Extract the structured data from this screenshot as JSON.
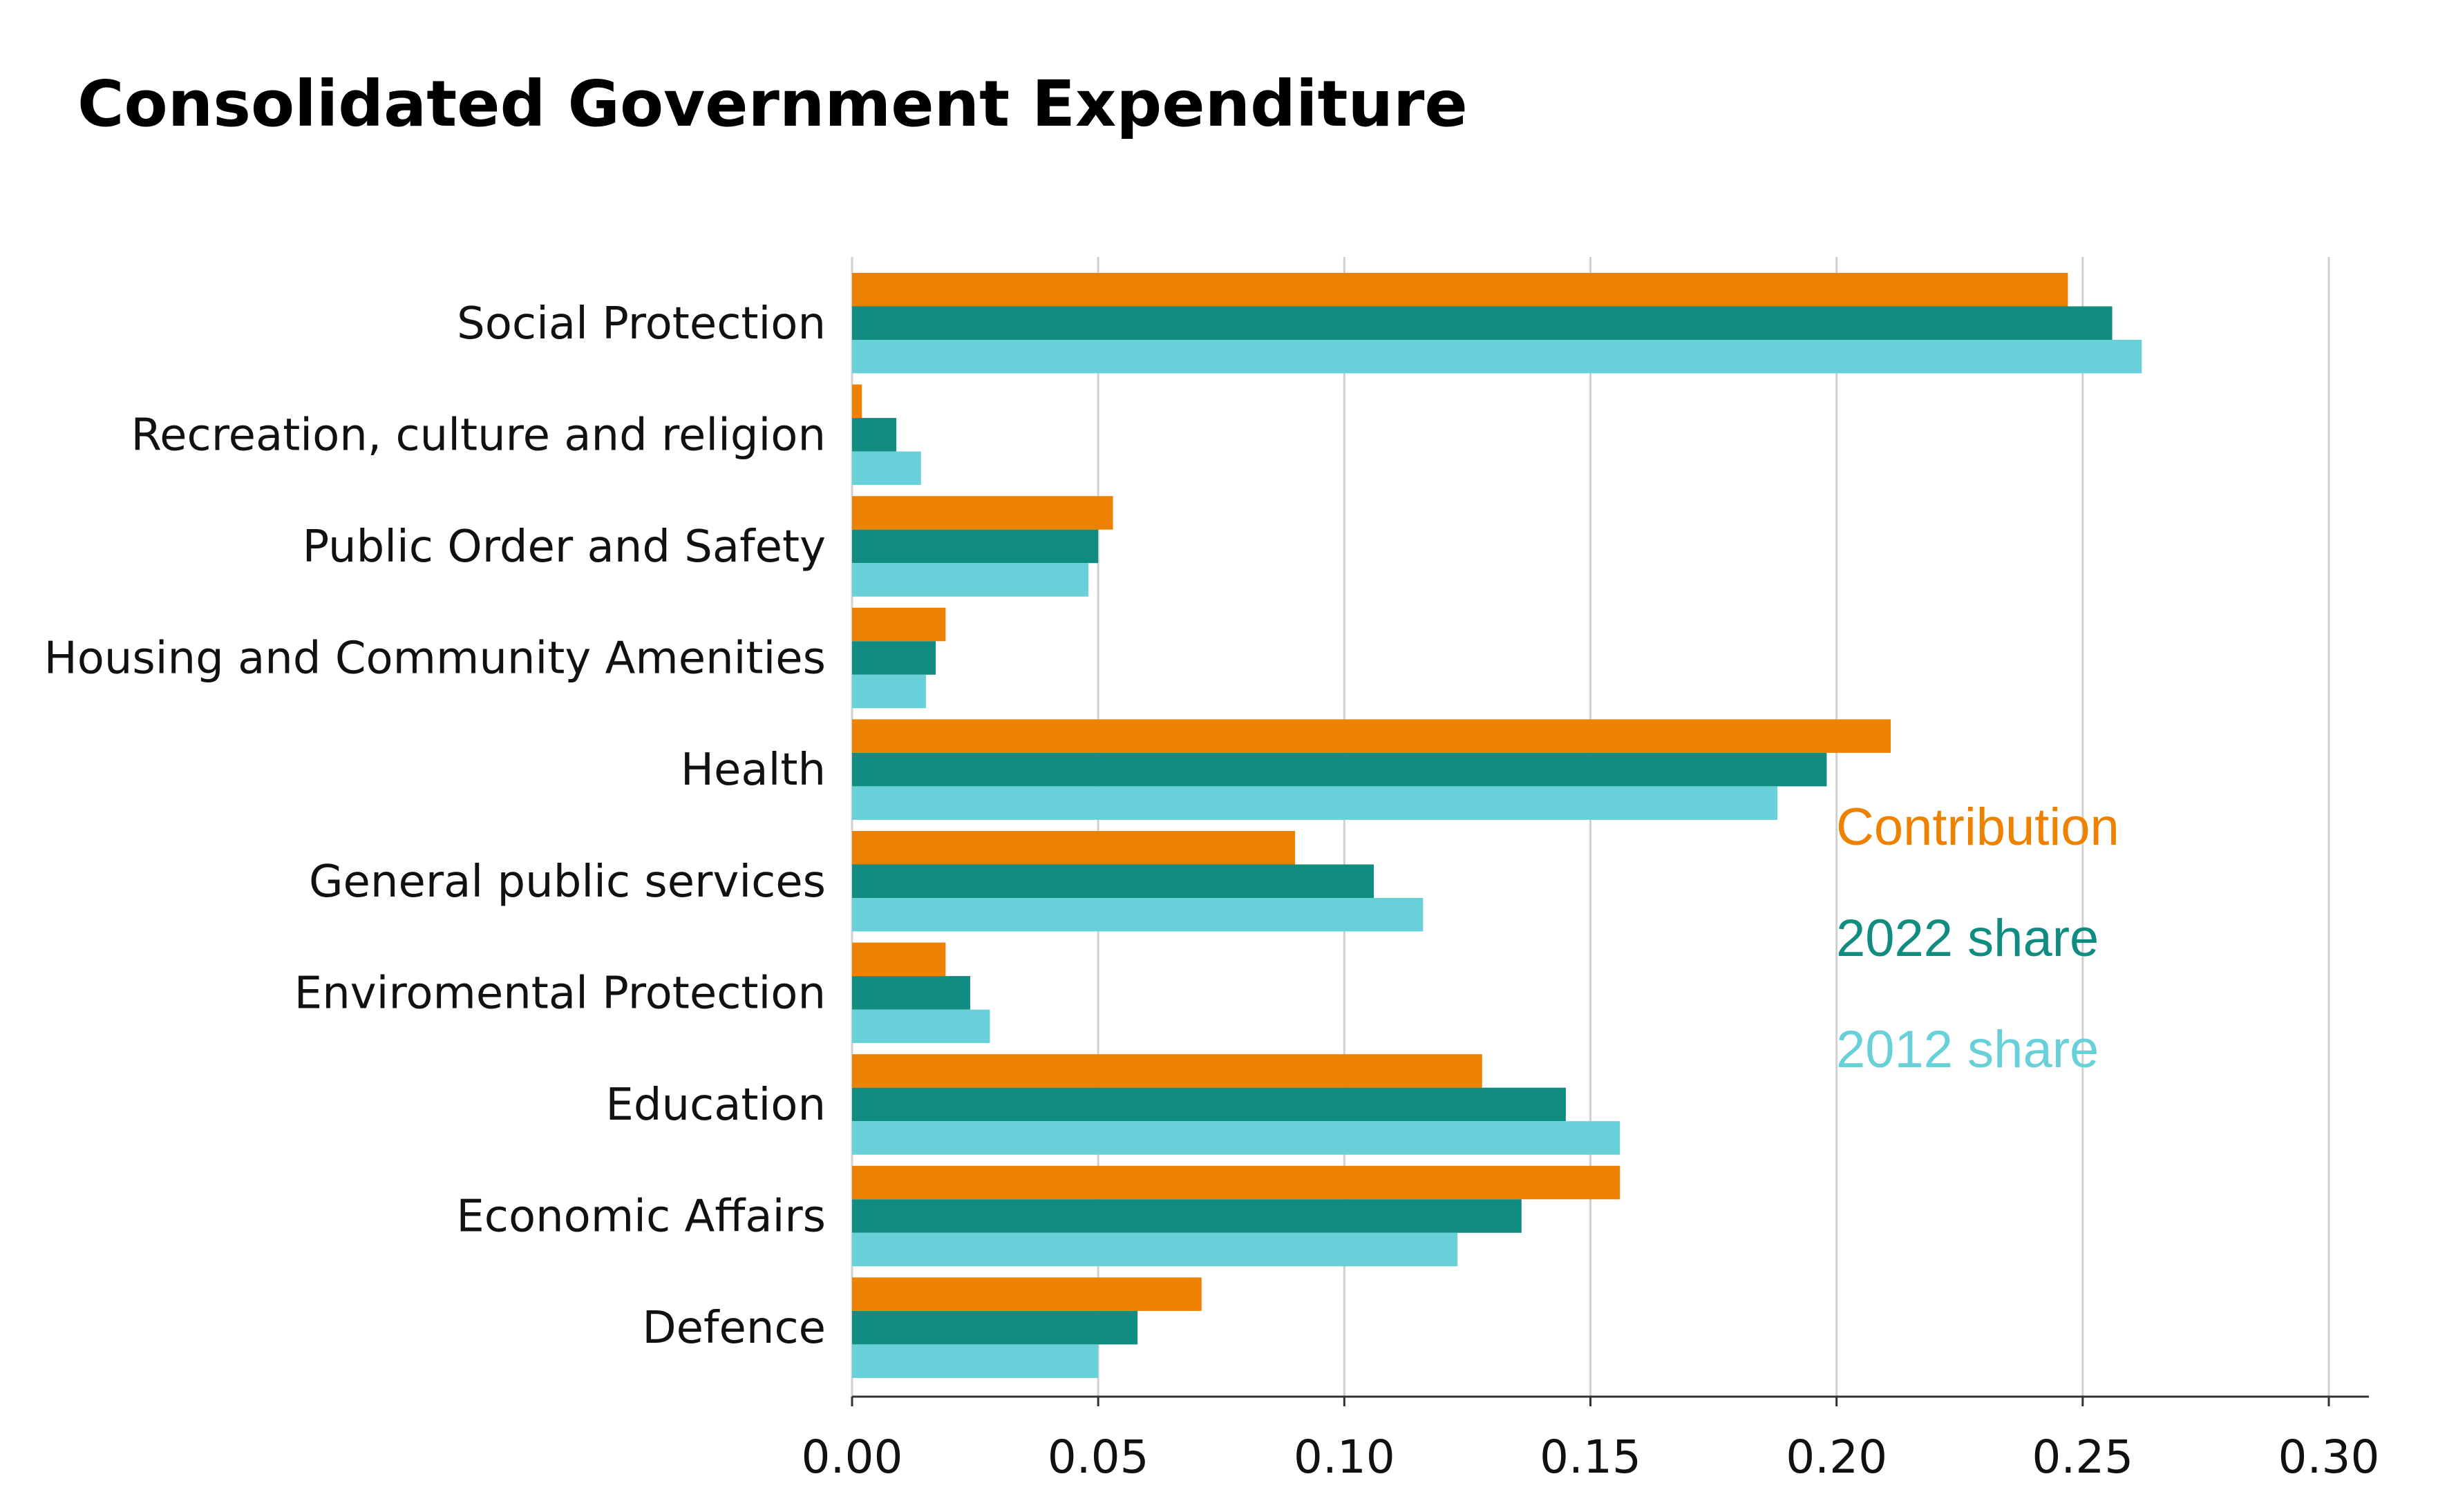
{
  "colors": {
    "contribution": "#ee8100",
    "share_2022": "#118c81",
    "share_2012": "#67d0d9",
    "grid": "#d0d0d0",
    "axis": "#333333"
  },
  "chart_data": {
    "type": "bar",
    "orientation": "horizontal",
    "title": "Consolidated Government Expenditure",
    "xlabel": "",
    "ylabel": "",
    "xlim": [
      0,
      0.31
    ],
    "grid": "vertical",
    "legend_placement": "right",
    "x_ticks": [
      "0.00",
      "0.05",
      "0.10",
      "0.15",
      "0.20",
      "0.25",
      "0.30"
    ],
    "categories": [
      "Social Protection",
      "Recreation, culture and religion",
      "Public Order and Safety",
      "Housing and Community Amenities",
      "Health",
      "General public services",
      "Enviromental Protection",
      "Education",
      "Economic Affairs",
      "Defence"
    ],
    "series": [
      {
        "name": "Contribution",
        "color": "#ee8100",
        "values": [
          0.247,
          0.002,
          0.053,
          0.019,
          0.211,
          0.09,
          0.019,
          0.128,
          0.156,
          0.071
        ]
      },
      {
        "name": "2022 share",
        "color": "#118c81",
        "values": [
          0.256,
          0.009,
          0.05,
          0.017,
          0.198,
          0.106,
          0.024,
          0.145,
          0.136,
          0.058
        ]
      },
      {
        "name": "2012 share",
        "color": "#67d0d9",
        "values": [
          0.262,
          0.014,
          0.048,
          0.015,
          0.188,
          0.116,
          0.028,
          0.156,
          0.123,
          0.05
        ]
      }
    ]
  }
}
